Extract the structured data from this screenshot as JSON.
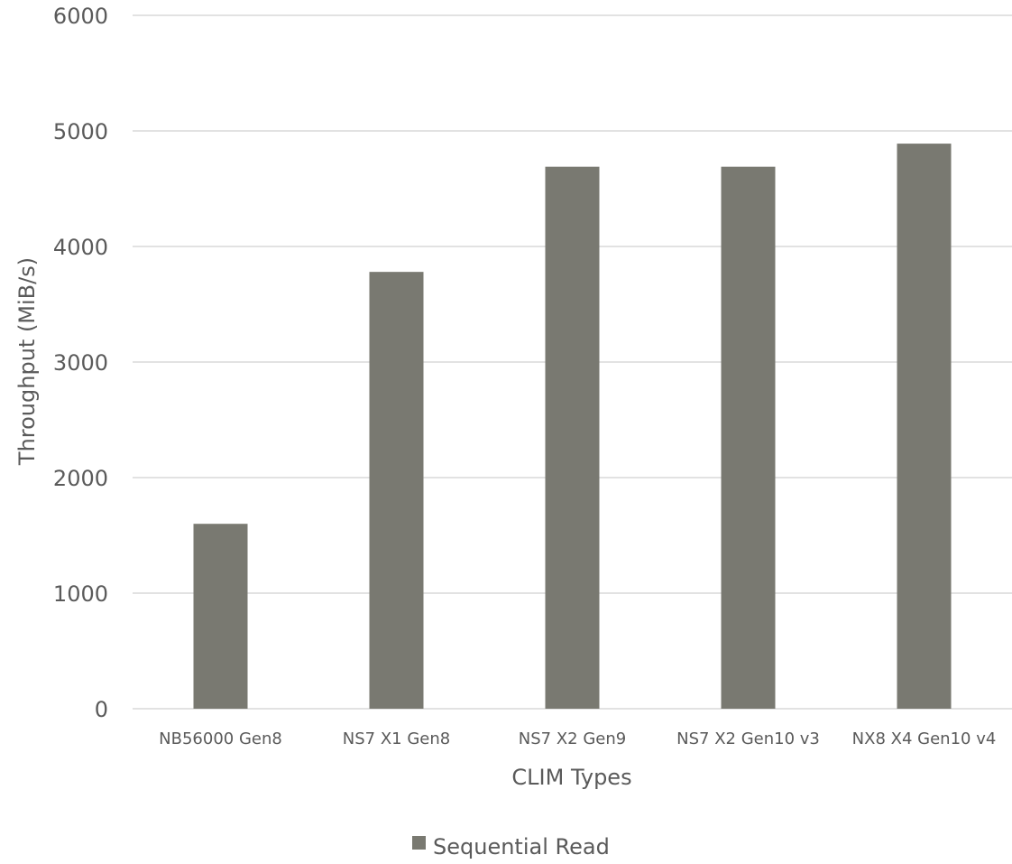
{
  "chart_data": {
    "type": "bar",
    "categories": [
      "NB56000 Gen8",
      "NS7 X1 Gen8",
      "NS7 X2 Gen9",
      "NS7 X2 Gen10 v3",
      "NX8 X4 Gen10 v4"
    ],
    "series": [
      {
        "name": "Sequential Read",
        "values": [
          1600,
          3780,
          4690,
          4690,
          4890
        ],
        "color": "#797971"
      }
    ],
    "title": "",
    "xlabel": "CLIM Types",
    "ylabel": "Throughput (MiB/s)",
    "ylim": [
      0,
      6000
    ],
    "yticks": [
      0,
      1000,
      2000,
      3000,
      4000,
      5000,
      6000
    ],
    "grid": true,
    "legend_position": "bottom",
    "gridline_color": "#d9d9d9",
    "text_color": "#5a5a5a"
  }
}
